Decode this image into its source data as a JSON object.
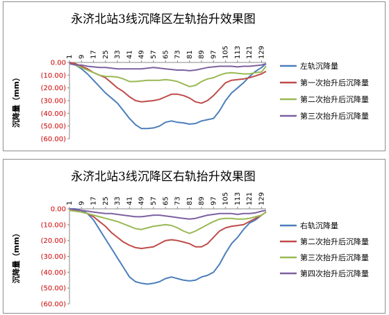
{
  "chart_data": [
    {
      "type": "line",
      "title": "永济北站3线沉降区左轨抬升效果图",
      "ylabel": "沉降量（mm）",
      "ylim": [
        -60,
        0
      ],
      "yticks": [
        "0.00",
        "(10.00)",
        "(20.00)",
        "(30.00)",
        "(40.00)",
        "(50.00)",
        "(60.00)"
      ],
      "xticks": [
        1,
        9,
        17,
        25,
        33,
        41,
        49,
        57,
        65,
        73,
        81,
        89,
        97,
        105,
        113,
        121,
        129
      ],
      "xlim": [
        1,
        132
      ],
      "legend_position": "right",
      "series": [
        {
          "name": "左轨沉降量",
          "color": "#4a7ebb",
          "points": [
            [
              1,
              0
            ],
            [
              5,
              -2
            ],
            [
              9,
              -5
            ],
            [
              13,
              -9
            ],
            [
              17,
              -14
            ],
            [
              21,
              -19
            ],
            [
              25,
              -24
            ],
            [
              29,
              -28
            ],
            [
              33,
              -32
            ],
            [
              37,
              -38
            ],
            [
              41,
              -44
            ],
            [
              45,
              -49
            ],
            [
              49,
              -52
            ],
            [
              53,
              -52
            ],
            [
              57,
              -51.5
            ],
            [
              61,
              -50
            ],
            [
              65,
              -47
            ],
            [
              69,
              -46
            ],
            [
              73,
              -47
            ],
            [
              77,
              -47.5
            ],
            [
              81,
              -48.5
            ],
            [
              85,
              -48
            ],
            [
              89,
              -46
            ],
            [
              93,
              -45
            ],
            [
              97,
              -44
            ],
            [
              101,
              -38
            ],
            [
              105,
              -30
            ],
            [
              109,
              -24
            ],
            [
              113,
              -20
            ],
            [
              117,
              -16
            ],
            [
              121,
              -11
            ],
            [
              125,
              -7
            ],
            [
              129,
              -4
            ],
            [
              132,
              -1
            ]
          ]
        },
        {
          "name": "第一次抬升后沉降量",
          "color": "#be4b48",
          "points": [
            [
              1,
              0
            ],
            [
              5,
              -1
            ],
            [
              9,
              -3
            ],
            [
              13,
              -5
            ],
            [
              17,
              -8
            ],
            [
              21,
              -10
            ],
            [
              25,
              -12
            ],
            [
              29,
              -16
            ],
            [
              33,
              -20
            ],
            [
              37,
              -23
            ],
            [
              41,
              -27
            ],
            [
              45,
              -30
            ],
            [
              49,
              -31
            ],
            [
              53,
              -30.5
            ],
            [
              57,
              -30
            ],
            [
              61,
              -29
            ],
            [
              65,
              -27
            ],
            [
              69,
              -25
            ],
            [
              73,
              -25
            ],
            [
              77,
              -26
            ],
            [
              81,
              -28
            ],
            [
              85,
              -31
            ],
            [
              89,
              -32
            ],
            [
              93,
              -30
            ],
            [
              97,
              -26
            ],
            [
              101,
              -21
            ],
            [
              105,
              -16
            ],
            [
              109,
              -14
            ],
            [
              113,
              -13.5
            ],
            [
              117,
              -13
            ],
            [
              121,
              -12
            ],
            [
              125,
              -10.5
            ],
            [
              129,
              -9
            ],
            [
              132,
              -7
            ]
          ]
        },
        {
          "name": "第二次抬升后沉降量",
          "color": "#98b954",
          "points": [
            [
              1,
              -1
            ],
            [
              5,
              -2
            ],
            [
              9,
              -4
            ],
            [
              13,
              -6
            ],
            [
              17,
              -8
            ],
            [
              21,
              -10
            ],
            [
              25,
              -11
            ],
            [
              29,
              -11
            ],
            [
              33,
              -11.5
            ],
            [
              37,
              -13
            ],
            [
              41,
              -15
            ],
            [
              45,
              -15
            ],
            [
              49,
              -14.5
            ],
            [
              53,
              -14
            ],
            [
              57,
              -14
            ],
            [
              61,
              -14
            ],
            [
              65,
              -13.5
            ],
            [
              69,
              -14
            ],
            [
              73,
              -15
            ],
            [
              77,
              -17
            ],
            [
              81,
              -19
            ],
            [
              85,
              -18
            ],
            [
              89,
              -15
            ],
            [
              93,
              -13
            ],
            [
              97,
              -12
            ],
            [
              101,
              -10
            ],
            [
              105,
              -8.5
            ],
            [
              109,
              -8
            ],
            [
              113,
              -8.5
            ],
            [
              117,
              -9
            ],
            [
              121,
              -9
            ],
            [
              125,
              -8
            ],
            [
              129,
              -7.5
            ],
            [
              132,
              -3
            ]
          ]
        },
        {
          "name": "第三次抬升后沉降量",
          "color": "#7d60a0",
          "points": [
            [
              1,
              -1
            ],
            [
              5,
              -2
            ],
            [
              9,
              -2
            ],
            [
              13,
              -3
            ],
            [
              17,
              -3.5
            ],
            [
              21,
              -4
            ],
            [
              25,
              -4
            ],
            [
              29,
              -4.5
            ],
            [
              33,
              -5
            ],
            [
              37,
              -5
            ],
            [
              41,
              -5
            ],
            [
              45,
              -5
            ],
            [
              49,
              -5
            ],
            [
              53,
              -4.5
            ],
            [
              57,
              -4
            ],
            [
              61,
              -4.5
            ],
            [
              65,
              -5
            ],
            [
              69,
              -5.5
            ],
            [
              73,
              -6
            ],
            [
              77,
              -6
            ],
            [
              81,
              -6.5
            ],
            [
              85,
              -6
            ],
            [
              89,
              -5
            ],
            [
              93,
              -4
            ],
            [
              97,
              -3.5
            ],
            [
              101,
              -3
            ],
            [
              105,
              -3
            ],
            [
              109,
              -3
            ],
            [
              113,
              -3.5
            ],
            [
              117,
              -3
            ],
            [
              121,
              -3
            ],
            [
              125,
              -2.5
            ],
            [
              129,
              -2
            ],
            [
              132,
              -1
            ]
          ]
        }
      ]
    },
    {
      "type": "line",
      "title": "永济北站3线沉降区右轨抬升效果图",
      "ylabel": "沉降量（mm）",
      "ylim": [
        -60,
        0
      ],
      "yticks": [
        "0.00",
        "(10.00)",
        "(20.00)",
        "(30.00)",
        "(40.00)",
        "(50.00)",
        "(60.00)"
      ],
      "xticks": [
        1,
        9,
        17,
        25,
        33,
        41,
        49,
        57,
        65,
        73,
        81,
        89,
        97,
        105,
        113,
        121,
        129
      ],
      "xlim": [
        1,
        132
      ],
      "legend_position": "right",
      "series": [
        {
          "name": "右轨沉降量",
          "color": "#4a7ebb",
          "points": [
            [
              1,
              0
            ],
            [
              5,
              0
            ],
            [
              9,
              -1
            ],
            [
              13,
              -3
            ],
            [
              17,
              -7
            ],
            [
              21,
              -13
            ],
            [
              25,
              -19
            ],
            [
              29,
              -25
            ],
            [
              33,
              -31
            ],
            [
              37,
              -37
            ],
            [
              41,
              -43
            ],
            [
              45,
              -46
            ],
            [
              49,
              -47
            ],
            [
              53,
              -47.5
            ],
            [
              57,
              -47
            ],
            [
              61,
              -46
            ],
            [
              65,
              -44
            ],
            [
              69,
              -43
            ],
            [
              73,
              -44
            ],
            [
              77,
              -45
            ],
            [
              81,
              -45.5
            ],
            [
              85,
              -45
            ],
            [
              89,
              -43
            ],
            [
              93,
              -42
            ],
            [
              97,
              -40
            ],
            [
              101,
              -35
            ],
            [
              105,
              -28
            ],
            [
              109,
              -22
            ],
            [
              113,
              -18
            ],
            [
              117,
              -13
            ],
            [
              121,
              -9
            ],
            [
              125,
              -7
            ],
            [
              129,
              -4
            ],
            [
              132,
              -2
            ]
          ]
        },
        {
          "name": "第二次抬升后沉降量",
          "color": "#be4b48",
          "points": [
            [
              1,
              -1
            ],
            [
              5,
              -1
            ],
            [
              9,
              -2
            ],
            [
              13,
              -3
            ],
            [
              17,
              -5
            ],
            [
              21,
              -8
            ],
            [
              25,
              -11
            ],
            [
              29,
              -15
            ],
            [
              33,
              -18
            ],
            [
              37,
              -21
            ],
            [
              41,
              -23
            ],
            [
              45,
              -24.5
            ],
            [
              49,
              -25
            ],
            [
              53,
              -24.5
            ],
            [
              57,
              -24
            ],
            [
              61,
              -22
            ],
            [
              65,
              -20
            ],
            [
              69,
              -19.5
            ],
            [
              73,
              -20
            ],
            [
              77,
              -21
            ],
            [
              81,
              -22
            ],
            [
              85,
              -24
            ],
            [
              89,
              -24
            ],
            [
              93,
              -22
            ],
            [
              97,
              -18
            ],
            [
              101,
              -14
            ],
            [
              105,
              -12
            ],
            [
              109,
              -11
            ],
            [
              113,
              -10.5
            ],
            [
              117,
              -10
            ],
            [
              121,
              -8
            ],
            [
              125,
              -6
            ],
            [
              129,
              -4
            ],
            [
              132,
              -2
            ]
          ]
        },
        {
          "name": "第三次抬升后沉降量",
          "color": "#98b954",
          "points": [
            [
              1,
              -1
            ],
            [
              5,
              -1.5
            ],
            [
              9,
              -2
            ],
            [
              13,
              -3
            ],
            [
              17,
              -4
            ],
            [
              21,
              -5
            ],
            [
              25,
              -6
            ],
            [
              29,
              -7
            ],
            [
              33,
              -8
            ],
            [
              37,
              -9.5
            ],
            [
              41,
              -11
            ],
            [
              45,
              -12.5
            ],
            [
              49,
              -13
            ],
            [
              53,
              -12
            ],
            [
              57,
              -11
            ],
            [
              61,
              -10.5
            ],
            [
              65,
              -10
            ],
            [
              69,
              -10.5
            ],
            [
              73,
              -12
            ],
            [
              77,
              -14
            ],
            [
              81,
              -15.5
            ],
            [
              85,
              -14
            ],
            [
              89,
              -12
            ],
            [
              93,
              -10
            ],
            [
              97,
              -8
            ],
            [
              101,
              -6.5
            ],
            [
              105,
              -6
            ],
            [
              109,
              -6
            ],
            [
              113,
              -6.5
            ],
            [
              117,
              -6.5
            ],
            [
              121,
              -6
            ],
            [
              125,
              -5
            ],
            [
              129,
              -4
            ],
            [
              132,
              -2
            ]
          ]
        },
        {
          "name": "第四次抬升后沉降量",
          "color": "#7d60a0",
          "points": [
            [
              1,
              0
            ],
            [
              5,
              -0.5
            ],
            [
              9,
              -1
            ],
            [
              13,
              -1.5
            ],
            [
              17,
              -2
            ],
            [
              21,
              -2.5
            ],
            [
              25,
              -3
            ],
            [
              29,
              -3
            ],
            [
              33,
              -3.5
            ],
            [
              37,
              -4
            ],
            [
              41,
              -4.5
            ],
            [
              45,
              -5
            ],
            [
              49,
              -5
            ],
            [
              53,
              -4.5
            ],
            [
              57,
              -4
            ],
            [
              61,
              -4
            ],
            [
              65,
              -4.5
            ],
            [
              69,
              -5
            ],
            [
              73,
              -5.5
            ],
            [
              77,
              -6
            ],
            [
              81,
              -6.5
            ],
            [
              85,
              -6
            ],
            [
              89,
              -5
            ],
            [
              93,
              -4
            ],
            [
              97,
              -3.5
            ],
            [
              101,
              -3
            ],
            [
              105,
              -3
            ],
            [
              109,
              -3
            ],
            [
              113,
              -3.5
            ],
            [
              117,
              -3
            ],
            [
              121,
              -3
            ],
            [
              125,
              -2.5
            ],
            [
              129,
              -1.5
            ],
            [
              132,
              -1
            ]
          ]
        }
      ]
    }
  ]
}
